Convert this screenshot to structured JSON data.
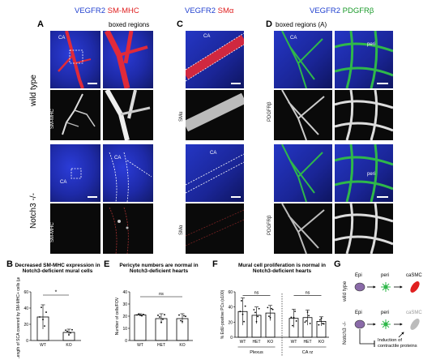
{
  "panels": {
    "A": {
      "letter": "A",
      "title_a": "VEGFR2",
      "title_b": "SM-MHC",
      "boxed_label": "boxed regions",
      "ca_label": "CA",
      "channel_label": "SM-MHC"
    },
    "C": {
      "letter": "C",
      "title_a": "VEGFR2",
      "title_b": "SMα",
      "ca_label": "CA",
      "channel_label": "SMα"
    },
    "D": {
      "letter": "D",
      "title_a": "VEGFR2",
      "title_b": "PDGFRβ",
      "boxed_label": "boxed regions (A)",
      "ca_label": "CA",
      "peri_label": "peri",
      "channel_label": "PDGFRβ"
    },
    "rows": {
      "wildtype": "wild type",
      "notch3": "Notch3 -/-"
    }
  },
  "panel_B": {
    "letter": "B",
    "title": "Decreased SM-MHC expression in Notch3-deficient mural cells",
    "sig": "*"
  },
  "panel_E": {
    "letter": "E",
    "title": "Pericyte numbers are normal in Notch3-deficient hearts",
    "sig": "ns"
  },
  "panel_F": {
    "letter": "F",
    "title": "Mural cell proliferation is normal in Notch3-deficient hearts",
    "sig1": "ns",
    "sig2": "ns",
    "group1": "Plexus",
    "group2": "CA rz"
  },
  "panel_G": {
    "letter": "G",
    "row1": "wild type",
    "row2": "Notch3 -/-",
    "epi": "Epi",
    "peri": "peri",
    "casmc": "caSMC",
    "note_line1": "Induction of",
    "note_line2": "contractile proteins"
  },
  "chart_data": [
    {
      "type": "bar",
      "panel": "B",
      "categories": [
        "WT",
        "KO"
      ],
      "values": [
        29,
        10
      ],
      "errors": [
        15,
        4
      ],
      "ylabel": "Length of SCA covered by SM-MHC+ cells (µm)",
      "ylim": [
        0,
        60
      ],
      "yticks": [
        0,
        20,
        40,
        60
      ]
    },
    {
      "type": "bar",
      "panel": "E",
      "categories": [
        "WT",
        "HET",
        "KO"
      ],
      "values": [
        21,
        18,
        18
      ],
      "errors": [
        1,
        4,
        4
      ],
      "ylabel": "Number of cells/FOV",
      "ylim": [
        0,
        40
      ],
      "yticks": [
        0,
        10,
        20,
        30,
        40
      ]
    },
    {
      "type": "bar",
      "panel": "F",
      "categories": [
        "WT",
        "HET",
        "KO",
        "WT",
        "HET",
        "KO"
      ],
      "values": [
        34,
        29,
        32,
        25,
        26,
        21
      ],
      "errors": [
        18,
        11,
        10,
        12,
        10,
        6
      ],
      "ylabel": "% EdU-positive PCs (x100)",
      "ylim": [
        0,
        60
      ],
      "yticks": [
        0,
        20,
        40,
        60
      ]
    }
  ]
}
